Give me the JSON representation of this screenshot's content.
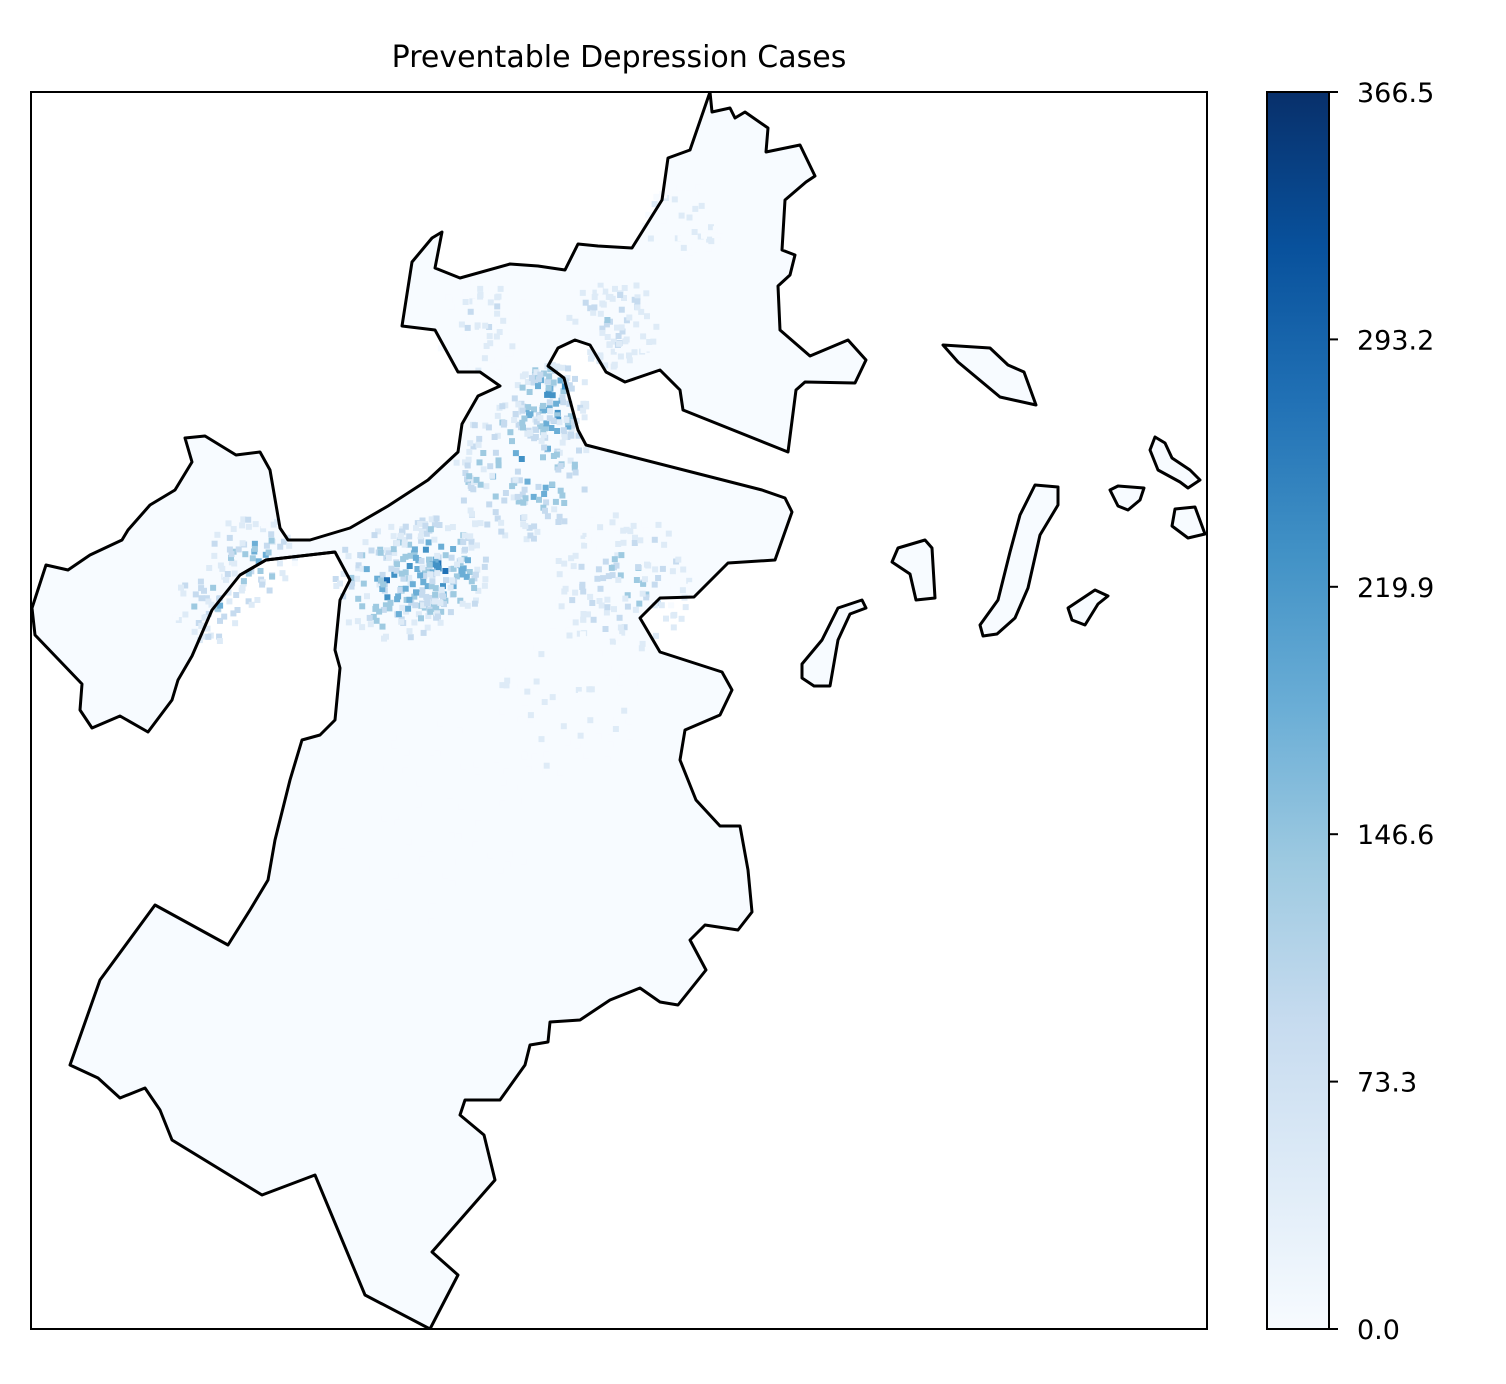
{
  "title": "Preventable Depression Cases",
  "colormap": "Blues",
  "colormap_stops": [
    "#f7fbff",
    "#deebf7",
    "#c6dbef",
    "#9ecae1",
    "#6baed6",
    "#4292c6",
    "#2171b5",
    "#08519c",
    "#08306b"
  ],
  "boundary_color": "#000000",
  "chart_data": {
    "type": "heatmap",
    "title": "Preventable Depression Cases",
    "colorbar": {
      "min": 0.0,
      "max": 366.5,
      "ticks": [
        0.0,
        73.3,
        146.6,
        219.9,
        293.2,
        366.5
      ],
      "tick_labels": [
        "0.0",
        "73.3",
        "146.6",
        "219.9",
        "293.2",
        "366.5"
      ]
    },
    "axes_ticks_visible": false,
    "grid": false
  }
}
